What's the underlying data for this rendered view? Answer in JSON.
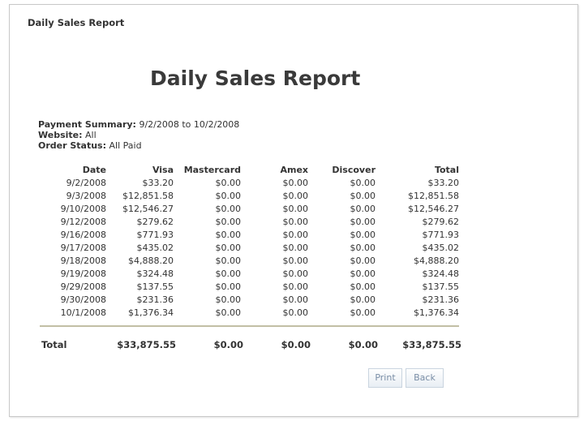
{
  "window": {
    "title": "Daily Sales Report"
  },
  "report": {
    "heading": "Daily Sales Report",
    "summary": {
      "payment_label": "Payment Summary:",
      "payment_value": " 9/2/2008 to 10/2/2008",
      "website_label": "Website:",
      "website_value": " All",
      "status_label": "Order Status:",
      "status_value": " All Paid"
    },
    "columns": [
      "Date",
      "Visa",
      "Mastercard",
      "Amex",
      "Discover",
      "Total"
    ],
    "rows": [
      [
        "9/2/2008",
        "$33.20",
        "$0.00",
        "$0.00",
        "$0.00",
        "$33.20"
      ],
      [
        "9/3/2008",
        "$12,851.58",
        "$0.00",
        "$0.00",
        "$0.00",
        "$12,851.58"
      ],
      [
        "9/10/2008",
        "$12,546.27",
        "$0.00",
        "$0.00",
        "$0.00",
        "$12,546.27"
      ],
      [
        "9/12/2008",
        "$279.62",
        "$0.00",
        "$0.00",
        "$0.00",
        "$279.62"
      ],
      [
        "9/16/2008",
        "$771.93",
        "$0.00",
        "$0.00",
        "$0.00",
        "$771.93"
      ],
      [
        "9/17/2008",
        "$435.02",
        "$0.00",
        "$0.00",
        "$0.00",
        "$435.02"
      ],
      [
        "9/18/2008",
        "$4,888.20",
        "$0.00",
        "$0.00",
        "$0.00",
        "$4,888.20"
      ],
      [
        "9/19/2008",
        "$324.48",
        "$0.00",
        "$0.00",
        "$0.00",
        "$324.48"
      ],
      [
        "9/29/2008",
        "$137.55",
        "$0.00",
        "$0.00",
        "$0.00",
        "$137.55"
      ],
      [
        "9/30/2008",
        "$231.36",
        "$0.00",
        "$0.00",
        "$0.00",
        "$231.36"
      ],
      [
        "10/1/2008",
        "$1,376.34",
        "$0.00",
        "$0.00",
        "$0.00",
        "$1,376.34"
      ]
    ],
    "totals": {
      "label": "Total",
      "visa": "$33,875.55",
      "mastercard": "$0.00",
      "amex": "$0.00",
      "discover": "$0.00",
      "total": "$33,875.55"
    }
  },
  "buttons": {
    "print": "Print",
    "back": "Back"
  }
}
